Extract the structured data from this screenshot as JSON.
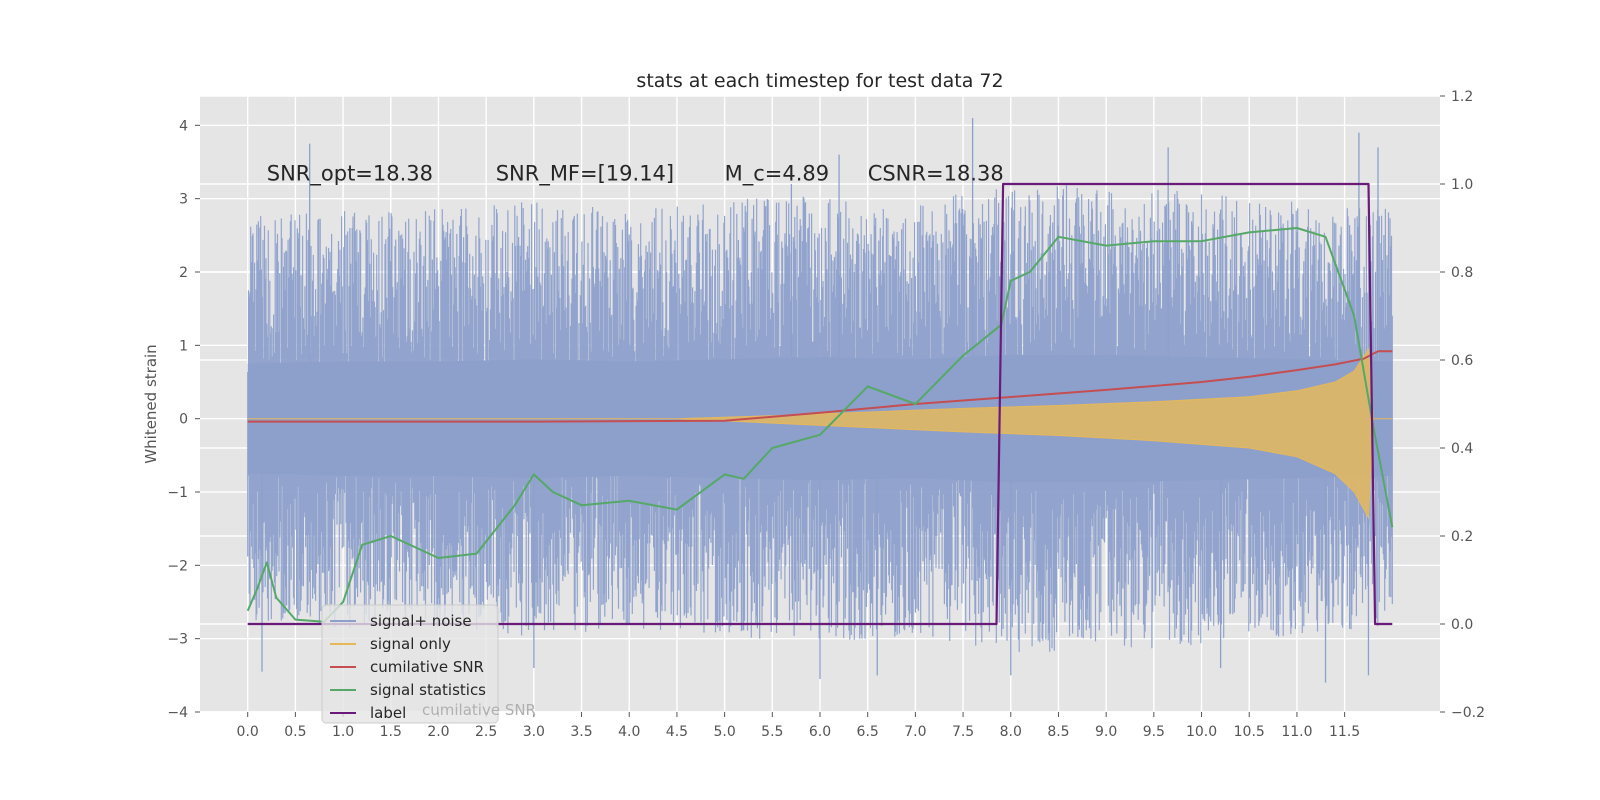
{
  "chart_data": {
    "type": "line",
    "title": "stats at each timestep for test data 72",
    "ylabel": "Whitened strain",
    "xlabel": "",
    "xlim": [
      -0.5,
      12.5
    ],
    "ylim": [
      -4,
      4.4
    ],
    "y2lim": [
      -0.2,
      1.2
    ],
    "xticks": [
      "0.0",
      "0.5",
      "1.0",
      "1.5",
      "2.0",
      "2.5",
      "3.0",
      "3.5",
      "4.0",
      "4.5",
      "5.0",
      "5.5",
      "6.0",
      "6.5",
      "7.0",
      "7.5",
      "8.0",
      "8.5",
      "9.0",
      "9.5",
      "10.0",
      "10.5",
      "11.0",
      "11.5"
    ],
    "yticks": [
      "4",
      "3",
      "2",
      "1",
      "0",
      "−1",
      "−2",
      "−3",
      "−4"
    ],
    "y2ticks": [
      "1.2",
      "1.0",
      "0.8",
      "0.6",
      "0.4",
      "0.2",
      "0.0",
      "−0.2"
    ],
    "grid": true,
    "legend_position": "lower-left",
    "annotations": [
      {
        "id": "snr_opt",
        "text": "SNR_opt=18.38",
        "x": 0.2,
        "y": 3.3
      },
      {
        "id": "snr_mf",
        "text": "SNR_MF=[19.14]",
        "x": 2.6,
        "y": 3.3
      },
      {
        "id": "mc",
        "text": "M_c=4.89",
        "x": 5.0,
        "y": 3.3
      },
      {
        "id": "csnr",
        "text": "CSNR=18.38",
        "x": 6.5,
        "y": 3.3
      }
    ],
    "series": [
      {
        "name": "signal+ noise",
        "axis": "left",
        "color": "#8da0cb",
        "description": "dense noisy whitened strain, roughly within -2.5..2.5 with spikes to about +4 and -3.6",
        "envelope": {
          "x": [
            0,
            1,
            2,
            3,
            4,
            5,
            6,
            7,
            8,
            9,
            10,
            11,
            12
          ],
          "upper": [
            2.5,
            2.6,
            2.6,
            2.7,
            2.6,
            2.7,
            2.8,
            2.7,
            2.9,
            2.9,
            2.8,
            2.7,
            2.6
          ],
          "lower": [
            -2.5,
            -2.6,
            -2.6,
            -2.7,
            -2.6,
            -2.7,
            -2.8,
            -2.7,
            -2.9,
            -2.9,
            -2.8,
            -2.7,
            -2.6
          ]
        },
        "spikes": [
          [
            0.65,
            3.75
          ],
          [
            3.0,
            -3.4
          ],
          [
            5.7,
            3.2
          ],
          [
            6.2,
            3.6
          ],
          [
            6.6,
            -3.5
          ],
          [
            7.6,
            4.1
          ],
          [
            8.0,
            -3.5
          ],
          [
            9.65,
            3.7
          ],
          [
            10.2,
            -3.4
          ],
          [
            11.3,
            -3.6
          ],
          [
            11.65,
            3.9
          ],
          [
            11.85,
            3.7
          ],
          [
            11.75,
            -3.5
          ],
          [
            0.15,
            -3.45
          ],
          [
            6.0,
            -3.55
          ]
        ]
      },
      {
        "name": "signal only",
        "axis": "left",
        "color": "#e5b85c",
        "description": "chirp signal envelope growing toward merger near t=11.8",
        "envelope": {
          "x": [
            0,
            4.5,
            5.5,
            6.5,
            7.5,
            8.5,
            9.5,
            10.5,
            11.0,
            11.4,
            11.6,
            11.75,
            11.8,
            12.0
          ],
          "upper": [
            0,
            0,
            0.04,
            0.09,
            0.14,
            0.18,
            0.23,
            0.3,
            0.38,
            0.5,
            0.65,
            0.95,
            0.0,
            0.0
          ],
          "lower": [
            0,
            0,
            -0.06,
            -0.12,
            -0.18,
            -0.23,
            -0.3,
            -0.4,
            -0.52,
            -0.75,
            -1.0,
            -1.35,
            0.0,
            0.0
          ]
        }
      },
      {
        "name": "cumilative SNR",
        "axis": "right",
        "color": "#c44e52",
        "x": [
          0,
          3,
          5.0,
          6,
          7,
          8,
          9,
          10,
          10.5,
          11,
          11.4,
          11.7,
          11.85,
          12.0
        ],
        "y": [
          0.46,
          0.46,
          0.462,
          0.48,
          0.5,
          0.516,
          0.532,
          0.55,
          0.562,
          0.577,
          0.59,
          0.603,
          0.62,
          0.62
        ]
      },
      {
        "name": "signal statistics",
        "axis": "right",
        "color": "#55a868",
        "x": [
          0,
          0.1,
          0.2,
          0.3,
          0.5,
          0.8,
          1.0,
          1.2,
          1.5,
          2.0,
          2.4,
          2.8,
          3.0,
          3.2,
          3.5,
          4.0,
          4.5,
          5.0,
          5.2,
          5.5,
          6.0,
          6.5,
          7.0,
          7.5,
          7.9,
          8.0,
          8.2,
          8.5,
          9.0,
          9.5,
          10.0,
          10.5,
          11.0,
          11.3,
          11.6,
          11.8,
          12.0
        ],
        "y": [
          0.03,
          0.08,
          0.14,
          0.06,
          0.01,
          0.005,
          0.05,
          0.18,
          0.2,
          0.15,
          0.16,
          0.27,
          0.34,
          0.3,
          0.27,
          0.28,
          0.26,
          0.34,
          0.33,
          0.4,
          0.43,
          0.54,
          0.5,
          0.61,
          0.68,
          0.78,
          0.8,
          0.88,
          0.86,
          0.87,
          0.87,
          0.89,
          0.9,
          0.88,
          0.7,
          0.45,
          0.22
        ]
      },
      {
        "name": "label",
        "axis": "right",
        "color": "#6a1b7a",
        "x": [
          0,
          7.85,
          7.92,
          11.75,
          11.82,
          12.0
        ],
        "y": [
          0,
          0,
          1,
          1,
          0,
          0
        ]
      }
    ],
    "legend": [
      {
        "name": "signal+ noise",
        "color": "#8da0cb"
      },
      {
        "name": "signal only",
        "color": "#e5b85c"
      },
      {
        "name": "cumilative SNR",
        "color": "#c44e52"
      },
      {
        "name": "signal statistics",
        "color": "#55a868"
      },
      {
        "name": "label",
        "color": "#6a1b7a"
      }
    ],
    "legend_overlap_text": "cumilative SNR",
    "colors": {
      "plot_bg": "#e5e5e5",
      "grid": "#ffffff",
      "text": "#262626",
      "tick_text": "#555555"
    }
  }
}
